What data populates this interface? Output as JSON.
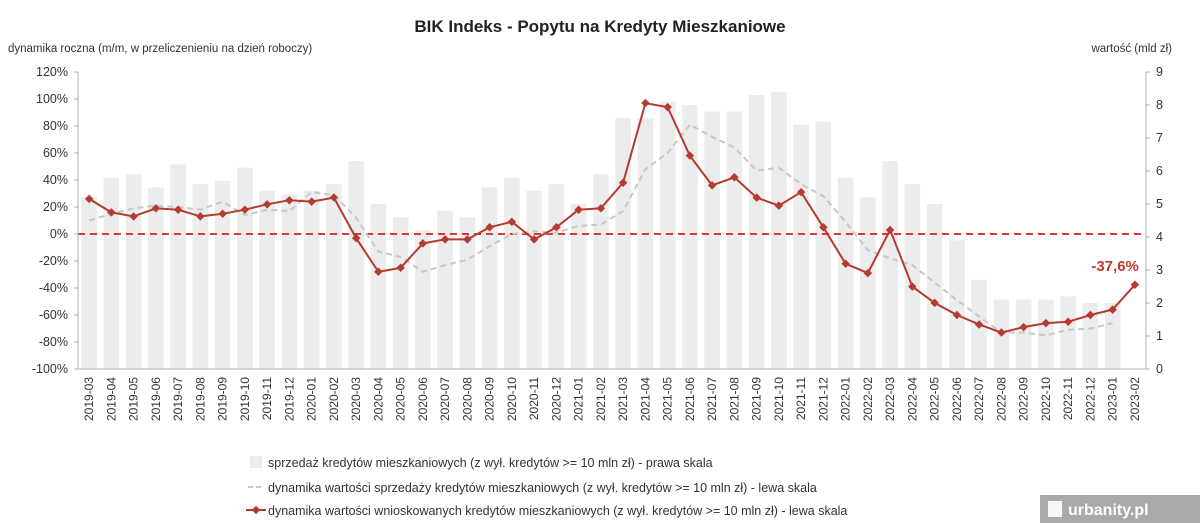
{
  "chart_data": {
    "type": "bar+line",
    "title": "BIK Indeks - Popytu na Kredyty Mieszkaniowe",
    "ylabel_left": "dynamika roczna (m/m, w przeliczenieniu na dzień roboczy)",
    "ylabel_right": "wartość (mld zł)",
    "ylim_left": [
      -100,
      120
    ],
    "ylim_right": [
      0,
      9
    ],
    "yticks_left": [
      "-100%",
      "-80%",
      "-60%",
      "-40%",
      "-20%",
      "0%",
      "20%",
      "40%",
      "60%",
      "80%",
      "100%",
      "120%"
    ],
    "yticks_right": [
      "0",
      "1",
      "2",
      "3",
      "4",
      "5",
      "6",
      "7",
      "8",
      "9"
    ],
    "categories": [
      "2019-03",
      "2019-04",
      "2019-05",
      "2019-06",
      "2019-07",
      "2019-08",
      "2019-09",
      "2019-10",
      "2019-11",
      "2019-12",
      "2020-01",
      "2020-02",
      "2020-03",
      "2020-04",
      "2020-05",
      "2020-06",
      "2020-07",
      "2020-08",
      "2020-09",
      "2020-10",
      "2020-11",
      "2020-12",
      "2021-01",
      "2021-02",
      "2021-03",
      "2021-04",
      "2021-05",
      "2021-06",
      "2021-07",
      "2021-08",
      "2021-09",
      "2021-10",
      "2021-11",
      "2021-12",
      "2022-01",
      "2022-02",
      "2022-03",
      "2022-04",
      "2022-05",
      "2022-06",
      "2022-07",
      "2022-08",
      "2022-09",
      "2022-10",
      "2022-11",
      "2022-12",
      "2023-01",
      "2023-02"
    ],
    "series": [
      {
        "name": "sprzedaż kredytów mieszkaniowych (z wył. kredytów >= 10 mln zł) - prawa skala",
        "type": "bar",
        "axis": "right",
        "color": "#ececec",
        "values": [
          5.2,
          5.8,
          5.9,
          5.5,
          6.2,
          5.6,
          5.7,
          6.1,
          5.4,
          5.3,
          5.4,
          5.6,
          6.3,
          5.0,
          4.6,
          4.2,
          4.8,
          4.6,
          5.5,
          5.8,
          5.4,
          5.6,
          5.0,
          5.9,
          7.6,
          7.6,
          8.1,
          8.0,
          7.8,
          7.8,
          8.3,
          8.4,
          7.4,
          7.5,
          5.8,
          5.2,
          6.3,
          5.6,
          5.0,
          3.9,
          2.7,
          2.1,
          2.1,
          2.1,
          2.2,
          2.0,
          2.0,
          null
        ]
      },
      {
        "name": "dynamika wartości sprzedaży kredytów mieszkaniowych (z wył. kredytów >= 10 mln zł) - lewa skala",
        "type": "line",
        "axis": "left",
        "color": "#c8c8c8",
        "values": [
          10,
          15,
          19,
          21,
          20,
          18,
          24,
          14,
          18,
          17,
          31,
          29,
          12,
          -13,
          -17,
          -28,
          -23,
          -19,
          -9,
          0,
          2,
          1,
          6,
          7,
          17,
          48,
          60,
          81,
          72,
          64,
          47,
          49,
          37,
          28,
          9,
          -12,
          -18,
          -23,
          -36,
          -49,
          -61,
          -73,
          -73,
          -75,
          -71,
          -70,
          -66,
          null
        ]
      },
      {
        "name": "dynamika wartości wnioskowanych kredytów mieszkaniowych (z wył. kredytów >= 10 mln zł) - lewa skala",
        "type": "line",
        "axis": "left",
        "color": "#b53a2f",
        "values": [
          26,
          16,
          13,
          19,
          18,
          13,
          15,
          18,
          22,
          25,
          24,
          27,
          -3,
          -28,
          -25,
          -7,
          -4,
          -4,
          5,
          9,
          -4,
          5,
          18,
          19,
          38,
          97,
          94,
          58,
          36,
          42,
          27,
          21,
          31,
          5,
          -22,
          -29,
          3,
          -39,
          -51,
          -60,
          -67,
          -73,
          -69,
          -66,
          -65,
          -60,
          -56,
          -37.6
        ]
      }
    ],
    "reference_line": {
      "value": 0,
      "axis": "left",
      "color": "#d9363e",
      "style": "dashed"
    },
    "annotation": {
      "text": "-37,6%",
      "category": "2023-02",
      "color": "#c0392b"
    },
    "legend_position": "bottom",
    "grid": false
  },
  "watermark": "urbanity.pl"
}
